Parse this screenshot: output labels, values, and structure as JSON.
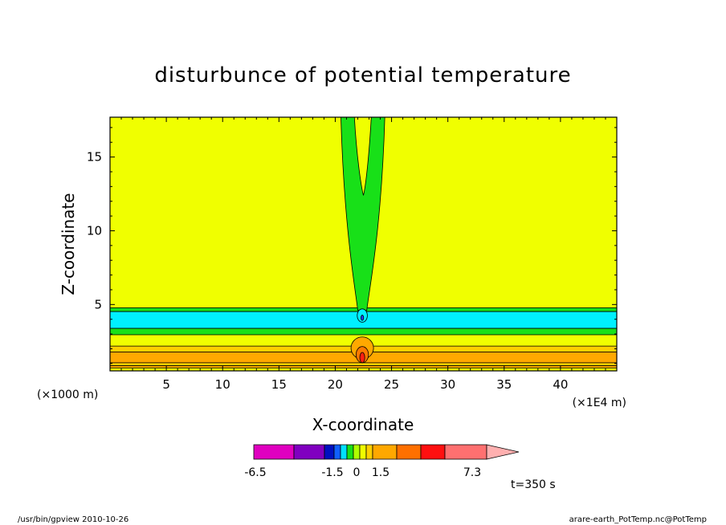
{
  "chart_data": {
    "type": "heatmap",
    "title": "disturbunce of potential temperature",
    "xlabel": "X-coordinate",
    "ylabel": "Z-coordinate",
    "x_unit": "(×1E4 m)",
    "y_unit": "(×1000 m)",
    "xlim": [
      0,
      45
    ],
    "ylim": [
      0.5,
      17.7
    ],
    "x_ticks": [
      "5",
      "10",
      "15",
      "20",
      "25",
      "30",
      "35",
      "40"
    ],
    "x_tick_values": [
      5,
      10,
      15,
      20,
      25,
      30,
      35,
      40
    ],
    "y_ticks": [
      "5",
      "10",
      "15"
    ],
    "y_tick_values": [
      5,
      10,
      15
    ],
    "grid": false,
    "background_level_color": "#f0ff00",
    "layers": [
      {
        "z0": 4.52,
        "z1": 4.78,
        "color": "#18e018"
      },
      {
        "z0": 3.38,
        "z1": 4.52,
        "color": "#00f0ff"
      },
      {
        "z0": 2.95,
        "z1": 3.38,
        "color": "#18e018"
      },
      {
        "z0": 1.78,
        "z1": 2.18,
        "color": "#ffd000"
      },
      {
        "z0": 1.05,
        "z1": 1.78,
        "color": "#ffa800"
      },
      {
        "z0": 0.85,
        "z1": 1.05,
        "color": "#ffd000"
      },
      {
        "z0": 0.7,
        "z1": 0.85,
        "color": "#ffa800"
      }
    ],
    "plume": {
      "outer_color": "#18e018",
      "inner_color": "#f0ff00",
      "outer_top_left_x": 20.5,
      "outer_top_right_x": 24.4,
      "outer_base_left_x": 22.0,
      "outer_base_right_x": 22.8,
      "outer_base_z": 4.6,
      "inner_top_left_x": 21.7,
      "inner_top_right_x": 23.2,
      "inner_bottom_x": 22.5,
      "inner_bottom_z": 12.4
    },
    "bumps": [
      {
        "x": 22.4,
        "z": 4.25,
        "rx": 0.45,
        "rz": 0.45,
        "color": "#00f0ff"
      },
      {
        "x": 22.4,
        "z": 4.1,
        "rx": 0.12,
        "rz": 0.18,
        "color": "#2040ff"
      },
      {
        "x": 22.4,
        "z": 2.05,
        "rx": 1.0,
        "rz": 0.75,
        "color": "#ffa800"
      },
      {
        "x": 22.4,
        "z": 1.6,
        "rx": 0.55,
        "rz": 0.55,
        "color": "#ff7800"
      },
      {
        "x": 22.4,
        "z": 1.4,
        "rx": 0.22,
        "rz": 0.35,
        "color": "#ff2010"
      }
    ],
    "colorbar": {
      "colors": [
        "#e000c0",
        "#8000c0",
        "#0010c0",
        "#1060ff",
        "#00e0ff",
        "#18e018",
        "#b0ff00",
        "#f0ff00",
        "#ffd000",
        "#ffa800",
        "#ff7000",
        "#ff1010",
        "#ff7070"
      ],
      "extend_color": "#ffb0b0",
      "labels": [
        "-6.5",
        "-1.5",
        "0",
        "1.5",
        "7.3"
      ]
    },
    "annotation": "t=350 s"
  },
  "footer": {
    "left": "/usr/bin/gpview   2010-10-26",
    "right": "arare-earth_PotTemp.nc@PotTemp"
  }
}
